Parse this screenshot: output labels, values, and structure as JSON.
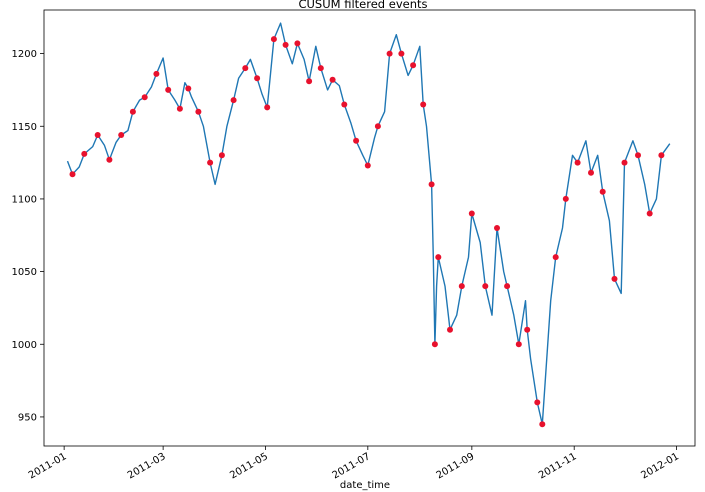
{
  "chart_data": {
    "type": "line",
    "title": "CUSUM filtered events",
    "xlabel": "date_time",
    "ylabel": "",
    "ylim": [
      930,
      1230
    ],
    "xlim": [
      "2010-12-20",
      "2012-01-12"
    ],
    "y_ticks": [
      950,
      1000,
      1050,
      1100,
      1150,
      1200
    ],
    "x_ticks": [
      "2011-01",
      "2011-03",
      "2011-05",
      "2011-07",
      "2011-09",
      "2011-11",
      "2012-01"
    ],
    "grid": false,
    "series": [
      {
        "kind": "line",
        "color": "#1f77b4",
        "x": [
          "2011-01-03",
          "2011-01-06",
          "2011-01-10",
          "2011-01-13",
          "2011-01-18",
          "2011-01-21",
          "2011-01-25",
          "2011-01-28",
          "2011-02-01",
          "2011-02-04",
          "2011-02-08",
          "2011-02-11",
          "2011-02-15",
          "2011-02-18",
          "2011-02-22",
          "2011-02-25",
          "2011-03-01",
          "2011-03-04",
          "2011-03-08",
          "2011-03-11",
          "2011-03-14",
          "2011-03-16",
          "2011-03-18",
          "2011-03-22",
          "2011-03-25",
          "2011-03-29",
          "2011-04-01",
          "2011-04-05",
          "2011-04-08",
          "2011-04-12",
          "2011-04-15",
          "2011-04-19",
          "2011-04-22",
          "2011-04-26",
          "2011-04-29",
          "2011-05-02",
          "2011-05-04",
          "2011-05-06",
          "2011-05-10",
          "2011-05-13",
          "2011-05-17",
          "2011-05-20",
          "2011-05-24",
          "2011-05-27",
          "2011-05-31",
          "2011-06-03",
          "2011-06-07",
          "2011-06-10",
          "2011-06-14",
          "2011-06-17",
          "2011-06-21",
          "2011-06-24",
          "2011-06-28",
          "2011-07-01",
          "2011-07-05",
          "2011-07-07",
          "2011-07-11",
          "2011-07-14",
          "2011-07-18",
          "2011-07-21",
          "2011-07-25",
          "2011-07-28",
          "2011-08-01",
          "2011-08-03",
          "2011-08-05",
          "2011-08-08",
          "2011-08-09",
          "2011-08-10",
          "2011-08-11",
          "2011-08-12",
          "2011-08-16",
          "2011-08-19",
          "2011-08-23",
          "2011-08-26",
          "2011-08-30",
          "2011-09-01",
          "2011-09-06",
          "2011-09-09",
          "2011-09-13",
          "2011-09-16",
          "2011-09-20",
          "2011-09-22",
          "2011-09-26",
          "2011-09-29",
          "2011-10-03",
          "2011-10-04",
          "2011-10-06",
          "2011-10-10",
          "2011-10-13",
          "2011-10-18",
          "2011-10-21",
          "2011-10-25",
          "2011-10-27",
          "2011-10-31",
          "2011-11-03",
          "2011-11-08",
          "2011-11-11",
          "2011-11-15",
          "2011-11-18",
          "2011-11-22",
          "2011-11-25",
          "2011-11-29",
          "2011-12-01",
          "2011-12-06",
          "2011-12-09",
          "2011-12-13",
          "2011-12-16",
          "2011-12-20",
          "2011-12-23",
          "2011-12-28"
        ],
        "y": [
          1126,
          1117,
          1122,
          1131,
          1136,
          1144,
          1137,
          1127,
          1139,
          1144,
          1147,
          1160,
          1168,
          1170,
          1177,
          1186,
          1197,
          1175,
          1168,
          1162,
          1180,
          1176,
          1170,
          1160,
          1150,
          1125,
          1110,
          1130,
          1150,
          1168,
          1183,
          1190,
          1196,
          1183,
          1172,
          1163,
          1186,
          1210,
          1221,
          1206,
          1193,
          1207,
          1196,
          1181,
          1205,
          1190,
          1175,
          1182,
          1178,
          1165,
          1152,
          1140,
          1130,
          1123,
          1142,
          1150,
          1160,
          1200,
          1213,
          1200,
          1185,
          1192,
          1205,
          1165,
          1150,
          1110,
          1060,
          1000,
          1040,
          1060,
          1040,
          1010,
          1020,
          1040,
          1060,
          1090,
          1070,
          1040,
          1020,
          1080,
          1050,
          1040,
          1020,
          1000,
          1030,
          1010,
          990,
          960,
          945,
          1030,
          1060,
          1080,
          1100,
          1130,
          1125,
          1140,
          1118,
          1130,
          1105,
          1085,
          1045,
          1035,
          1125,
          1140,
          1130,
          1110,
          1090,
          1100,
          1130,
          1138
        ]
      },
      {
        "kind": "scatter",
        "name": "",
        "color": "#e8112d",
        "x": [
          "2011-01-06",
          "2011-01-13",
          "2011-01-21",
          "2011-01-28",
          "2011-02-04",
          "2011-02-11",
          "2011-02-18",
          "2011-02-25",
          "2011-03-04",
          "2011-03-11",
          "2011-03-16",
          "2011-03-22",
          "2011-03-29",
          "2011-04-05",
          "2011-04-12",
          "2011-04-19",
          "2011-04-26",
          "2011-05-02",
          "2011-05-06",
          "2011-05-13",
          "2011-05-20",
          "2011-05-27",
          "2011-06-03",
          "2011-06-10",
          "2011-06-17",
          "2011-06-24",
          "2011-07-01",
          "2011-07-07",
          "2011-07-14",
          "2011-07-21",
          "2011-07-28",
          "2011-08-03",
          "2011-08-08",
          "2011-08-10",
          "2011-08-12",
          "2011-08-19",
          "2011-08-26",
          "2011-09-01",
          "2011-09-09",
          "2011-09-16",
          "2011-09-22",
          "2011-09-29",
          "2011-10-04",
          "2011-10-10",
          "2011-10-13",
          "2011-10-21",
          "2011-10-27",
          "2011-11-03",
          "2011-11-11",
          "2011-11-18",
          "2011-11-25",
          "2011-12-01",
          "2011-12-09",
          "2011-12-16",
          "2011-12-23"
        ],
        "y": [
          1117,
          1131,
          1144,
          1127,
          1144,
          1160,
          1170,
          1186,
          1175,
          1162,
          1176,
          1160,
          1125,
          1130,
          1168,
          1190,
          1183,
          1163,
          1210,
          1206,
          1207,
          1181,
          1190,
          1182,
          1165,
          1140,
          1123,
          1150,
          1200,
          1200,
          1192,
          1165,
          1110,
          1000,
          1060,
          1010,
          1040,
          1090,
          1040,
          1080,
          1040,
          1000,
          1010,
          960,
          945,
          1060,
          1100,
          1125,
          1118,
          1105,
          1045,
          1125,
          1130,
          1090,
          1130
        ]
      }
    ]
  }
}
